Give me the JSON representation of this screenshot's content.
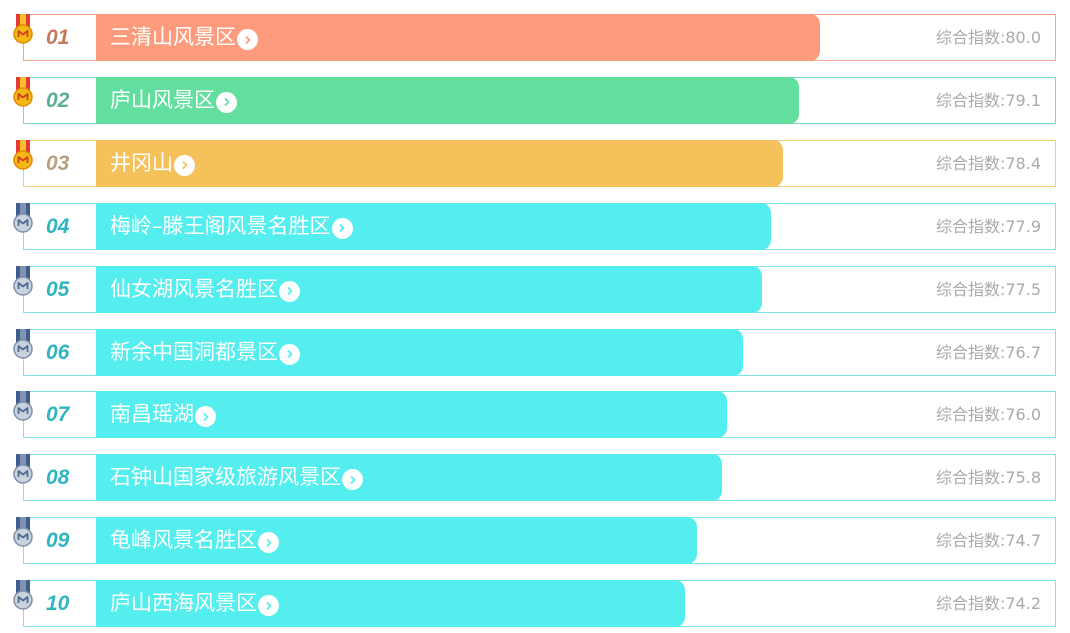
{
  "chart_data": {
    "type": "bar",
    "orientation": "horizontal",
    "score_label": "综合指数:",
    "xlim": [
      0,
      100
    ],
    "items": [
      {
        "rank": "01",
        "name": "三清山风景区",
        "value": 80.0,
        "value_label": "80.0",
        "color": "#FF9B7D",
        "medal": "gold"
      },
      {
        "rank": "02",
        "name": "庐山风景区",
        "value": 79.1,
        "value_label": "79.1",
        "color": "#62DF9F",
        "medal": "gold"
      },
      {
        "rank": "03",
        "name": "井冈山",
        "value": 78.4,
        "value_label": "78.4",
        "color": "#F4C15A",
        "medal": "gold"
      },
      {
        "rank": "04",
        "name": "梅岭–滕王阁风景名胜区",
        "value": 77.9,
        "value_label": "77.9",
        "color": "#55EEEF",
        "medal": "silver"
      },
      {
        "rank": "05",
        "name": "仙女湖风景名胜区",
        "value": 77.5,
        "value_label": "77.5",
        "color": "#55EEEF",
        "medal": "silver"
      },
      {
        "rank": "06",
        "name": "新余中国洞都景区",
        "value": 76.7,
        "value_label": "76.7",
        "color": "#55EEEF",
        "medal": "silver"
      },
      {
        "rank": "07",
        "name": "南昌瑶湖",
        "value": 76.0,
        "value_label": "76.0",
        "color": "#55EEEF",
        "medal": "silver"
      },
      {
        "rank": "08",
        "name": "石钟山国家级旅游风景区",
        "value": 75.8,
        "value_label": "75.8",
        "color": "#55EEEF",
        "medal": "silver"
      },
      {
        "rank": "09",
        "name": "龟峰风景名胜区",
        "value": 74.7,
        "value_label": "74.7",
        "color": "#55EEEF",
        "medal": "silver"
      },
      {
        "rank": "10",
        "name": "庐山西海风景区",
        "value": 74.2,
        "value_label": "74.2",
        "color": "#55EEEF",
        "medal": "silver"
      }
    ],
    "rank_colors": [
      "#C4795F",
      "#5AAE92",
      "#B8A17F",
      "#2EB5C0",
      "#2EB5C0",
      "#2EB5C0",
      "#2EB5C0",
      "#2EB5C0",
      "#2EB5C0",
      "#2EB5C0"
    ],
    "frame_colors": [
      "#F4A58D",
      "#7ADDB0",
      "#F2CF80",
      "#7EE6EA",
      "#7EE6EA",
      "#7EE6EA",
      "#7EE6EA",
      "#7EE6EA",
      "#7EE6EA",
      "#7EE6EA"
    ],
    "icons": [
      "medal-gold-icon",
      "medal-silver-icon",
      "chevron-right-icon"
    ]
  }
}
